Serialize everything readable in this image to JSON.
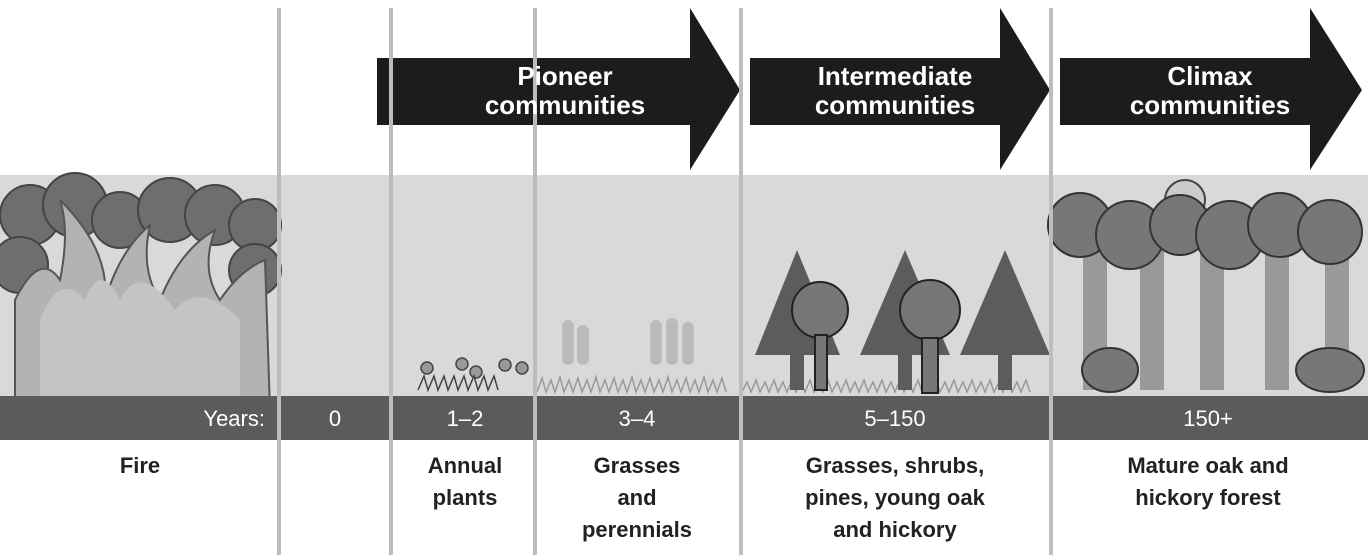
{
  "arrows": [
    {
      "lines": [
        "Pioneer",
        "communities"
      ]
    },
    {
      "lines": [
        "Intermediate",
        "communities"
      ]
    },
    {
      "lines": [
        "Climax",
        "communities"
      ]
    }
  ],
  "years_label": "Years:",
  "stages": [
    {
      "caption": [
        "Fire"
      ]
    },
    {
      "years": "0"
    },
    {
      "years": "1–2",
      "caption": [
        "Annual",
        "plants"
      ]
    },
    {
      "years": "3–4",
      "caption": [
        "Grasses",
        "and",
        "perennials"
      ]
    },
    {
      "years": "5–150",
      "caption": [
        "Grasses, shrubs,",
        "pines, young oak",
        "and hickory"
      ]
    },
    {
      "years": "150+",
      "caption": [
        "Mature oak and",
        "hickory forest"
      ]
    }
  ]
}
